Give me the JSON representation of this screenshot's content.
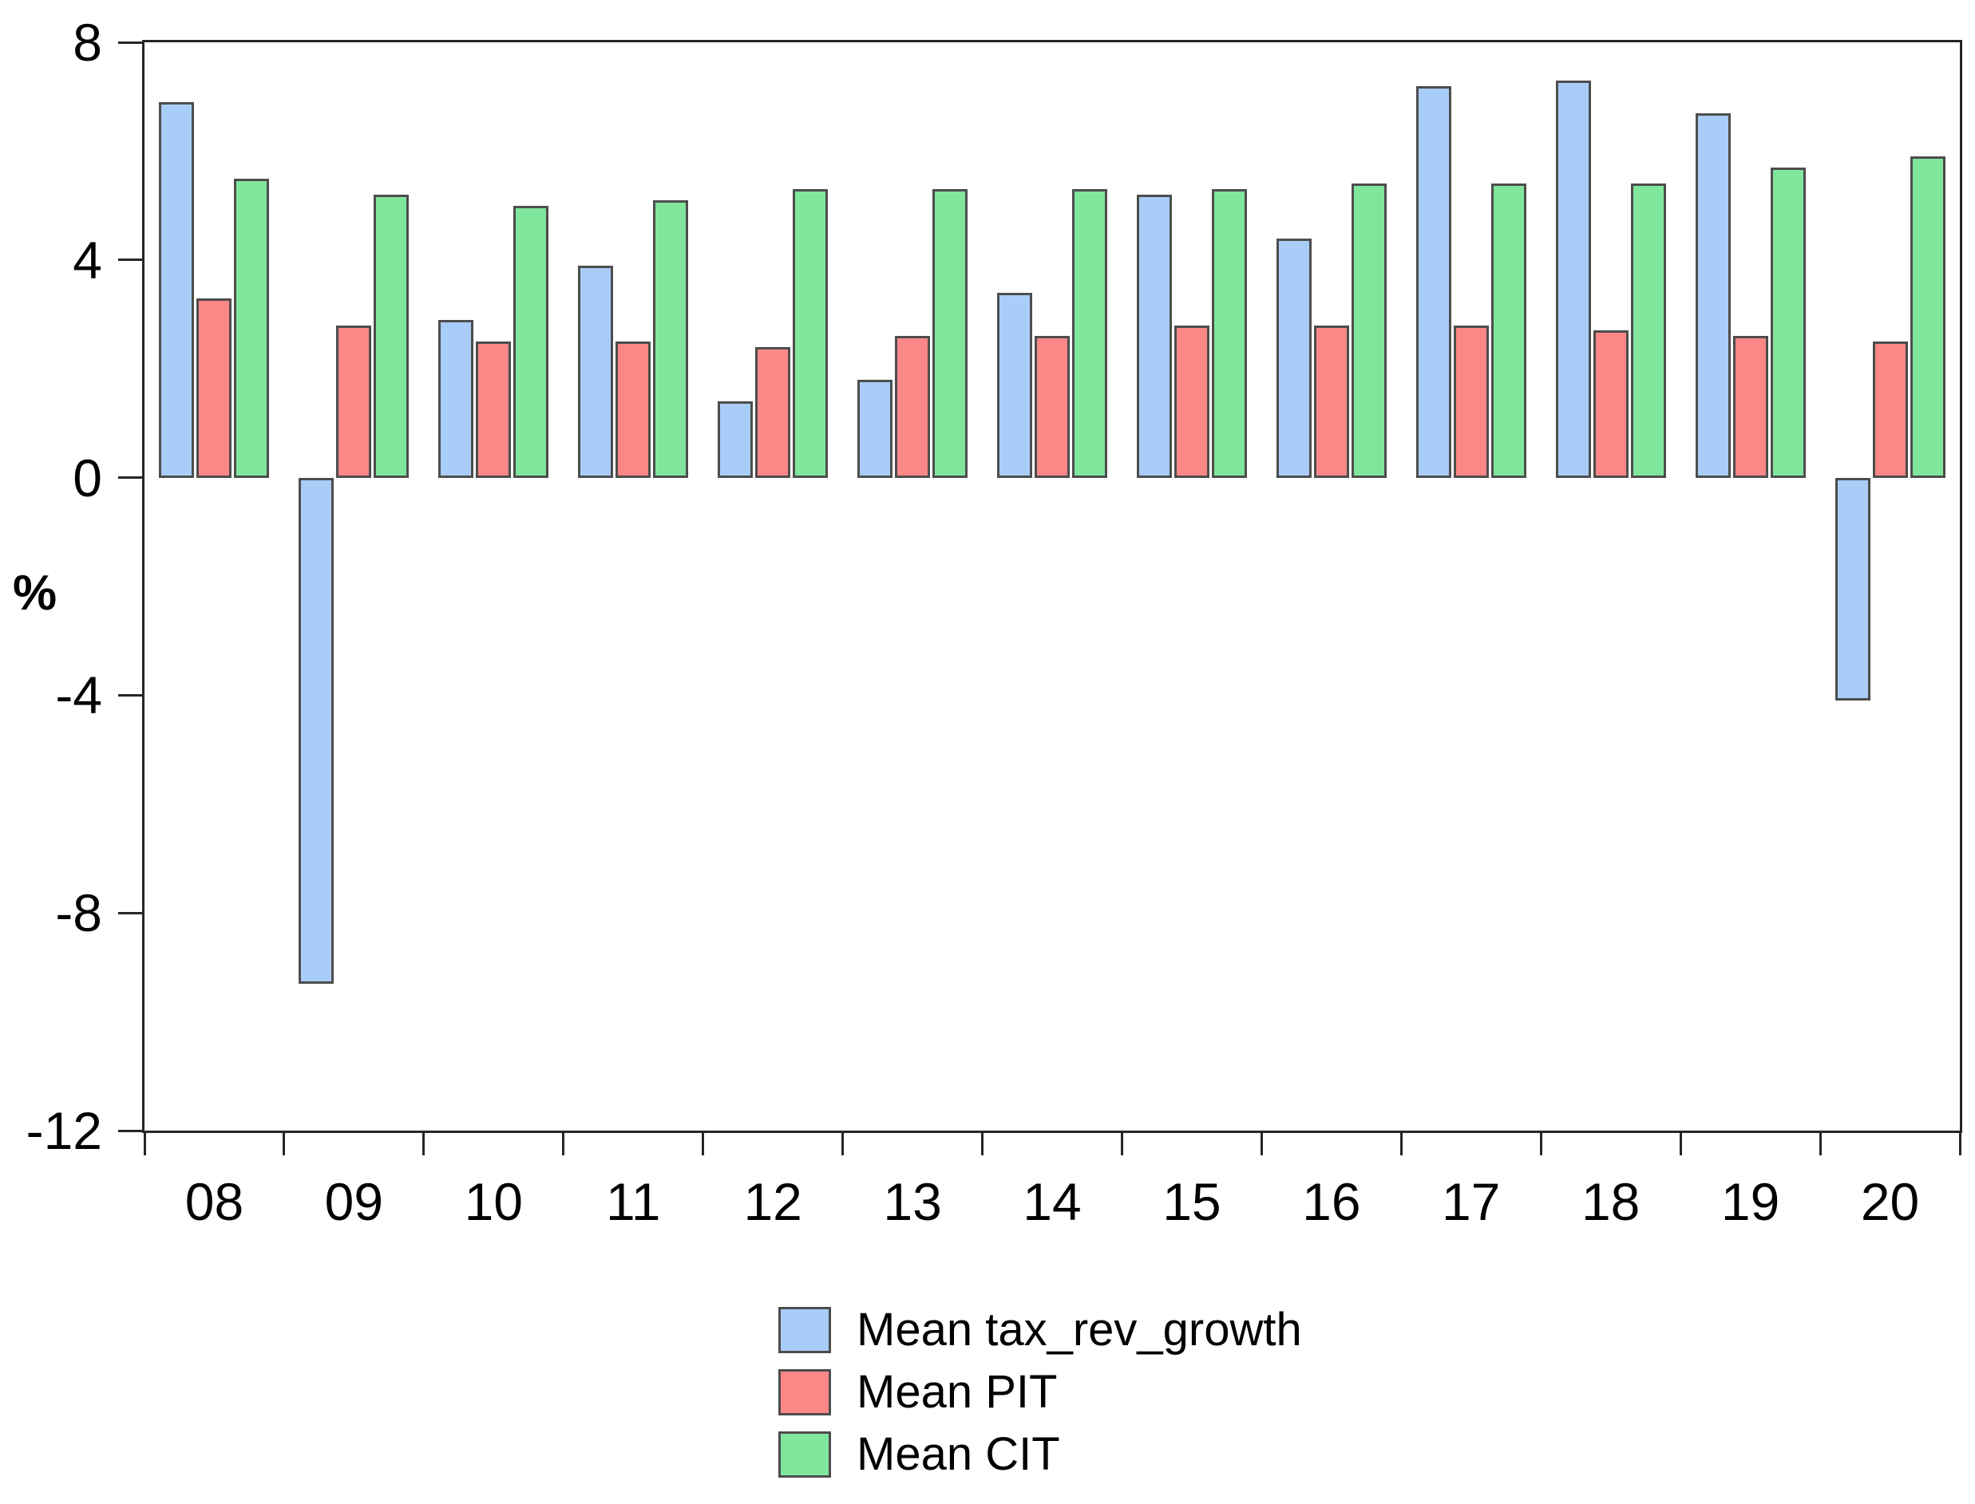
{
  "chart_data": {
    "type": "bar",
    "title": "",
    "xlabel": "",
    "ylabel": "%",
    "categories": [
      "08",
      "09",
      "10",
      "11",
      "12",
      "13",
      "14",
      "15",
      "16",
      "17",
      "18",
      "19",
      "20"
    ],
    "series": [
      {
        "name": "Mean tax_rev_growth",
        "color": "#A8CDF8",
        "values": [
          6.9,
          -9.3,
          2.9,
          3.9,
          1.4,
          1.8,
          3.4,
          5.2,
          4.4,
          7.2,
          7.3,
          6.7,
          -4.1
        ]
      },
      {
        "name": "Mean PIT",
        "color": "#FB8787",
        "values": [
          3.3,
          2.8,
          2.5,
          2.5,
          2.4,
          2.6,
          2.6,
          2.8,
          2.8,
          2.8,
          2.7,
          2.6,
          2.5
        ]
      },
      {
        "name": "Mean CIT",
        "color": "#80E69C",
        "values": [
          5.5,
          5.2,
          5.0,
          5.1,
          5.3,
          5.3,
          5.3,
          5.3,
          5.4,
          5.4,
          5.4,
          5.7,
          5.9
        ]
      }
    ],
    "yticks": [
      8,
      4,
      0,
      -4,
      -8,
      -12
    ],
    "ytick_labels": [
      "8",
      "4",
      "0",
      "-4",
      "-8",
      "-12"
    ],
    "ylim": [
      -12,
      8
    ],
    "grid": false,
    "legend_position": "bottom",
    "bar_border_color": "#4d4d4d",
    "axis_color": "#262626"
  }
}
